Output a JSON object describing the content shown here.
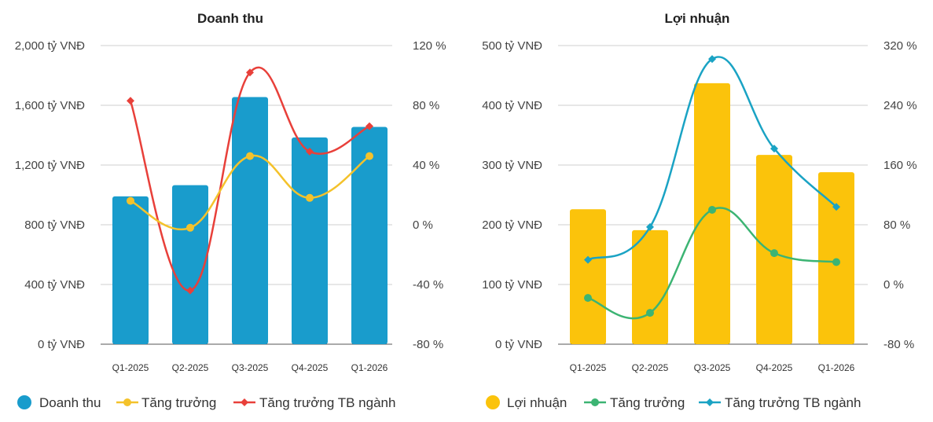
{
  "charts": [
    {
      "title": "Doanh thu",
      "bar_color": "#199ccc",
      "growth_color": "#f4c22b",
      "industry_color": "#e8403a",
      "industry_marker": "diamond",
      "left_ticks": [
        "0 tỷ VNĐ",
        "400 tỷ VNĐ",
        "800 tỷ VNĐ",
        "1,200 tỷ VNĐ",
        "1,600 tỷ VNĐ",
        "2,000 tỷ VNĐ"
      ],
      "right_ticks": [
        "-80 %",
        "-40 %",
        "0 %",
        "40 %",
        "80 %",
        "120 %"
      ],
      "legend": [
        "Doanh thu",
        "Tăng trưởng",
        "Tăng trưởng TB ngành"
      ]
    },
    {
      "title": "Lợi nhuận",
      "bar_color": "#fbc30b",
      "growth_color": "#3cb473",
      "industry_color": "#1aa3c4",
      "industry_marker": "diamond",
      "left_ticks": [
        "0 tỷ VNĐ",
        "100 tỷ VNĐ",
        "200 tỷ VNĐ",
        "300 tỷ VNĐ",
        "400 tỷ VNĐ",
        "500 tỷ VNĐ"
      ],
      "right_ticks": [
        "-80 %",
        "0 %",
        "80 %",
        "160 %",
        "240 %",
        "320 %"
      ],
      "legend": [
        "Lợi nhuận",
        "Tăng trưởng",
        "Tăng trưởng TB ngành"
      ]
    }
  ],
  "chart_data": [
    {
      "type": "bar",
      "title": "Doanh thu",
      "categories": [
        "Q1-2025",
        "Q2-2025",
        "Q3-2025",
        "Q4-2025",
        "Q1-2026"
      ],
      "ylim": [
        0,
        2000
      ],
      "y2lim": [
        -80,
        120
      ],
      "series": [
        {
          "name": "Doanh thu",
          "type": "bar",
          "axis": "left",
          "values": [
            990,
            1065,
            1655,
            1385,
            1455
          ]
        },
        {
          "name": "Tăng trưởng",
          "type": "line",
          "axis": "right",
          "values": [
            16,
            -2,
            46,
            18,
            46
          ]
        },
        {
          "name": "Tăng trưởng TB ngành",
          "type": "line",
          "axis": "right",
          "values": [
            83,
            -44,
            102,
            49,
            66
          ]
        }
      ],
      "grid": true,
      "legend_position": "bottom"
    },
    {
      "type": "bar",
      "title": "Lợi nhuận",
      "categories": [
        "Q1-2025",
        "Q2-2025",
        "Q3-2025",
        "Q4-2025",
        "Q1-2026"
      ],
      "ylim": [
        0,
        500
      ],
      "y2lim": [
        -80,
        320
      ],
      "series": [
        {
          "name": "Lợi nhuận",
          "type": "bar",
          "axis": "left",
          "values": [
            226,
            191,
            437,
            317,
            288
          ]
        },
        {
          "name": "Tăng trưởng",
          "type": "line",
          "axis": "right",
          "values": [
            -18,
            -38,
            100,
            42,
            30
          ]
        },
        {
          "name": "Tăng trưởng TB ngành",
          "type": "line",
          "axis": "right",
          "values": [
            33,
            77,
            302,
            182,
            104
          ]
        }
      ],
      "grid": true,
      "legend_position": "bottom"
    }
  ]
}
